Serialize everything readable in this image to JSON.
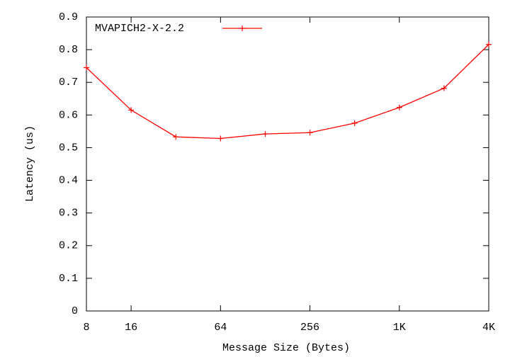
{
  "chart_data": {
    "type": "line",
    "x_label": "Message Size (Bytes)",
    "y_label": "Latency (us)",
    "x": [
      8,
      16,
      32,
      64,
      128,
      256,
      512,
      1024,
      2048,
      4096
    ],
    "series": [
      {
        "name": "MVAPICH2-X-2.2",
        "color": "#ff0000",
        "values": [
          0.745,
          0.615,
          0.533,
          0.528,
          0.542,
          0.546,
          0.575,
          0.623,
          0.682,
          0.816
        ]
      }
    ],
    "xscale": "log2",
    "xlim": [
      8,
      4096
    ],
    "xticks": [
      8,
      16,
      64,
      256,
      {
        "value": 1024,
        "label": "1K"
      },
      {
        "value": 4096,
        "label": "4K"
      }
    ],
    "ylim": [
      0,
      0.9
    ],
    "yticks": [
      0,
      0.1,
      0.2,
      0.3,
      0.4,
      0.5,
      0.6,
      0.7,
      0.8,
      0.9
    ],
    "legend": "top-left"
  }
}
